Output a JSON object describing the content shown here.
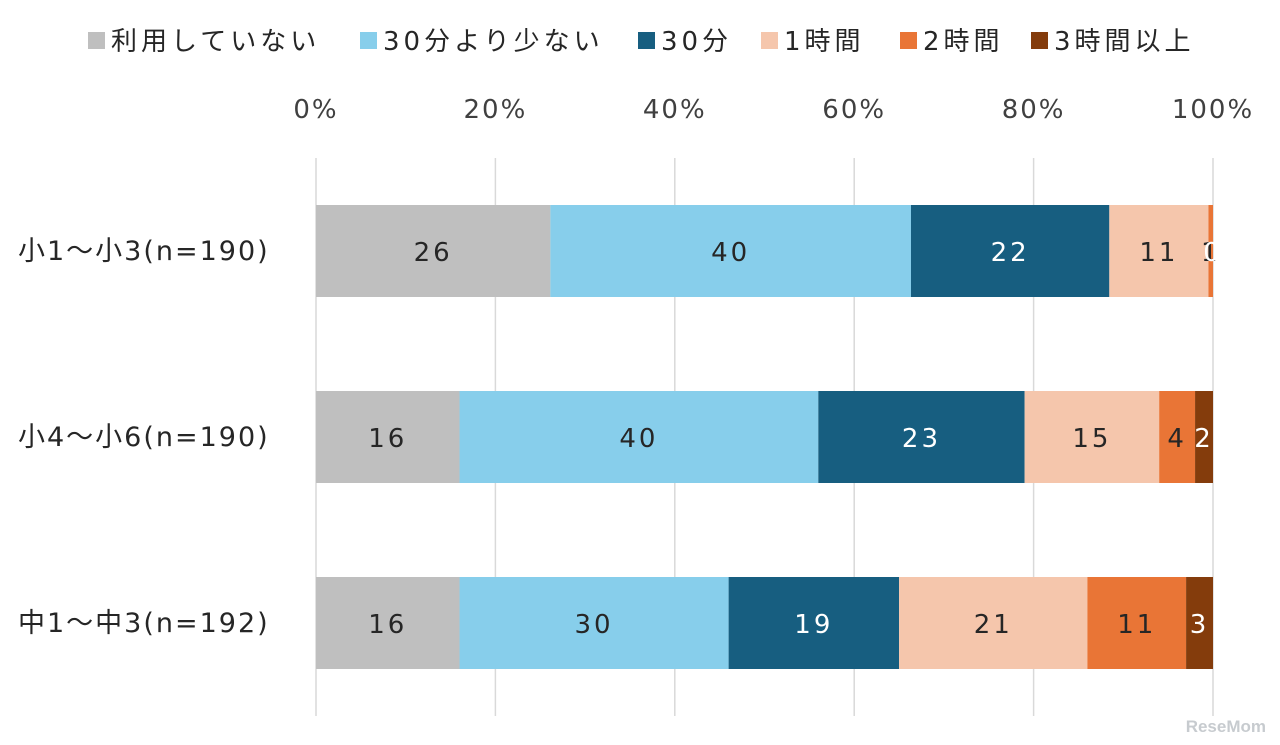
{
  "chart_data": {
    "type": "bar",
    "orientation": "horizontal",
    "stacked": true,
    "percent_stacked": true,
    "categories": [
      "小1〜小3(n=190)",
      "小4〜小6(n=190)",
      "中1〜中3(n=192)"
    ],
    "series": [
      {
        "name": "利用していない",
        "color": "#bfbfbf",
        "values": [
          26,
          16,
          16
        ],
        "labels": [
          "26",
          "16",
          "16"
        ]
      },
      {
        "name": "30分より少ない",
        "color": "#87ceeb",
        "values": [
          40,
          40,
          30
        ],
        "labels": [
          "40",
          "40",
          "30"
        ]
      },
      {
        "name": "30分",
        "color": "#175e80",
        "values": [
          22,
          23,
          19
        ],
        "labels": [
          "22",
          "23",
          "19"
        ]
      },
      {
        "name": "1時間",
        "color": "#f5c6ac",
        "values": [
          11,
          15,
          21
        ],
        "labels": [
          "11",
          "15",
          "21"
        ]
      },
      {
        "name": "2時間",
        "color": "#e97536",
        "values": [
          0.5,
          4,
          11
        ],
        "labels": [
          "1",
          "4",
          "11"
        ]
      },
      {
        "name": "3時間以上",
        "color": "#843c0c",
        "values": [
          0,
          2,
          3
        ],
        "labels": [
          "0",
          "2",
          "3"
        ]
      }
    ],
    "xlim": [
      0,
      100
    ],
    "ticks": [
      "0%",
      "20%",
      "40%",
      "60%",
      "80%",
      "100%"
    ],
    "grid": true,
    "legend_position": "top"
  },
  "watermark": "ReseMom"
}
